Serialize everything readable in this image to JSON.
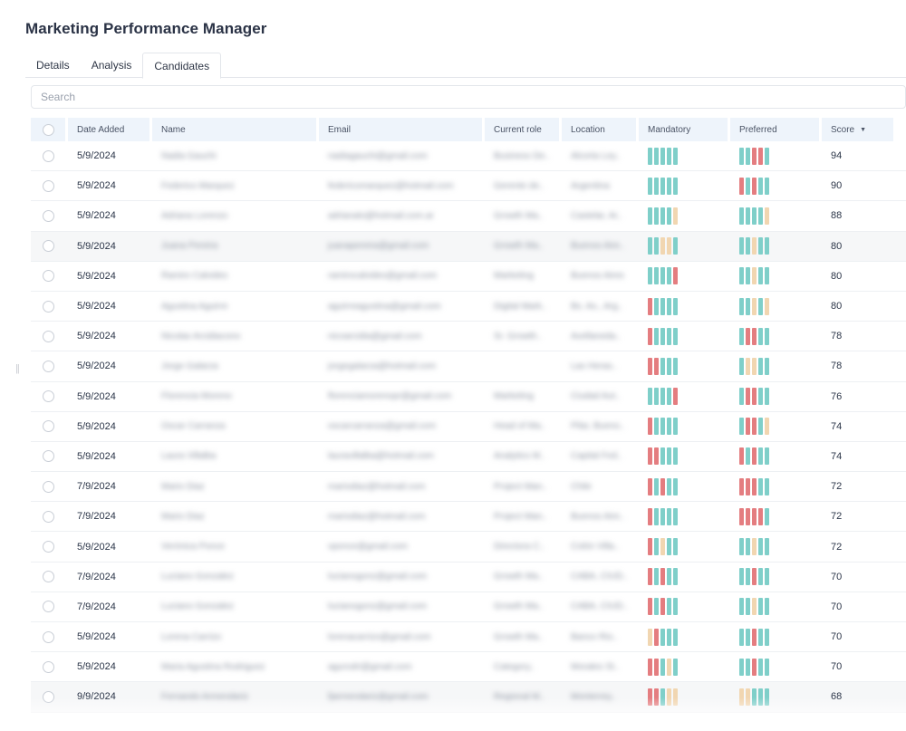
{
  "page": {
    "title": "Marketing Performance Manager"
  },
  "tabs": [
    {
      "label": "Details",
      "active": false
    },
    {
      "label": "Analysis",
      "active": false
    },
    {
      "label": "Candidates",
      "active": true
    }
  ],
  "search": {
    "placeholder": "Search",
    "value": ""
  },
  "colors": {
    "green": "#7fcfc9",
    "red": "#e47d80",
    "beige": "#f1d6b1",
    "header_bg": "#eef4fb"
  },
  "table": {
    "columns": [
      "",
      "Date Added",
      "Name",
      "Email",
      "Current role",
      "Location",
      "Mandatory",
      "Preferred",
      "Score"
    ],
    "sort": {
      "column": "Score",
      "direction": "desc"
    },
    "rows": [
      {
        "date": "5/9/2024",
        "name": "Nadia Gauchi",
        "email": "nadiagauchi@gmail.com",
        "role": "Business De..",
        "location": "Alcorta Ley..",
        "mandatory": "ggggg",
        "preferred": "ggrrg",
        "score": "94",
        "highlight": false
      },
      {
        "date": "5/9/2024",
        "name": "Federico Marquez",
        "email": "federicomarquez@hotmail.com",
        "role": "Gerente de..",
        "location": "Argentina",
        "mandatory": "ggggg",
        "preferred": "rgrgg",
        "score": "90",
        "highlight": false
      },
      {
        "date": "5/9/2024",
        "name": "Adriana Lorenzo",
        "email": "adrianalo@hotmail.com.ar",
        "role": "Growth Ma..",
        "location": "Castelar, Ar..",
        "mandatory": "ggggb",
        "preferred": "ggggb",
        "score": "88",
        "highlight": false
      },
      {
        "date": "5/9/2024",
        "name": "Juana Pereira",
        "email": "juanapereira@gmail.com",
        "role": "Growth Ma..",
        "location": "Buenos Aire..",
        "mandatory": "ggbbg",
        "preferred": "ggbgg",
        "score": "80",
        "highlight": true
      },
      {
        "date": "5/9/2024",
        "name": "Ramiro Calvides",
        "email": "ramirocalvides@gmail.com",
        "role": "Marketing",
        "location": "Buenos Aires",
        "mandatory": "ggggr",
        "preferred": "ggbgg",
        "score": "80",
        "highlight": false
      },
      {
        "date": "5/9/2024",
        "name": "Agustina Aguirre",
        "email": "aguirreagustina@gmail.com",
        "role": "Digital Mark..",
        "location": "Bs. As., Arg..",
        "mandatory": "rgggg",
        "preferred": "ggbgb",
        "score": "80",
        "highlight": false
      },
      {
        "date": "5/9/2024",
        "name": "Nicolas Arcidiacono",
        "email": "nicoarcidia@gmail.com",
        "role": "Sr. Growth..",
        "location": "Avellaneda..",
        "mandatory": "rgggg",
        "preferred": "grrgg",
        "score": "78",
        "highlight": false
      },
      {
        "date": "5/9/2024",
        "name": "Jorge Galarza",
        "email": "jorgegalarza@hotmail.com",
        "role": "",
        "location": "Las Heras..",
        "mandatory": "rrggg",
        "preferred": "gbbgg",
        "score": "78",
        "highlight": false
      },
      {
        "date": "5/9/2024",
        "name": "Florencia Moreno",
        "email": "florenciamorenopr@gmail.com",
        "role": "Marketing",
        "location": "Ciudad Aut..",
        "mandatory": "ggggr",
        "preferred": "grrgg",
        "score": "76",
        "highlight": false
      },
      {
        "date": "5/9/2024",
        "name": "Oscar Carranza",
        "email": "oscarcarranza@gmail.com",
        "role": "Head of Ma..",
        "location": "Pilar, Bueno..",
        "mandatory": "rgggg",
        "preferred": "grrgb",
        "score": "74",
        "highlight": false
      },
      {
        "date": "5/9/2024",
        "name": "Laura Villalba",
        "email": "lauravillalba@hotmail.com",
        "role": "Analytics M..",
        "location": "Capital Fed..",
        "mandatory": "rrggg",
        "preferred": "rgrgg",
        "score": "74",
        "highlight": false
      },
      {
        "date": "7/9/2024",
        "name": "Mario Diaz",
        "email": "mariodiaz@hotmail.com",
        "role": "Project Man..",
        "location": "Chile",
        "mandatory": "rgrgg",
        "preferred": "rrrgg",
        "score": "72",
        "highlight": false
      },
      {
        "date": "7/9/2024",
        "name": "Mario Diaz",
        "email": "mariodiaz@hotmail.com",
        "role": "Project Man..",
        "location": "Buenos Aire..",
        "mandatory": "rgggg",
        "preferred": "rrrrg",
        "score": "72",
        "highlight": false
      },
      {
        "date": "5/9/2024",
        "name": "Verónica Ponce",
        "email": "vponce@gmail.com",
        "role": "Directora C..",
        "location": "Colón Villa..",
        "mandatory": "rgbgg",
        "preferred": "ggbgg",
        "score": "72",
        "highlight": false
      },
      {
        "date": "7/9/2024",
        "name": "Luciano Gonzalez",
        "email": "lucianogonz@gmail.com",
        "role": "Growth Ma..",
        "location": "CABA, CIUD..",
        "mandatory": "rgrgg",
        "preferred": "ggrgg",
        "score": "70",
        "highlight": false
      },
      {
        "date": "7/9/2024",
        "name": "Luciano Gonzalez",
        "email": "lucianogonz@gmail.com",
        "role": "Growth Ma..",
        "location": "CABA, CIUD..",
        "mandatory": "rgrgg",
        "preferred": "ggbgg",
        "score": "70",
        "highlight": false
      },
      {
        "date": "5/9/2024",
        "name": "Lorena Carrizo",
        "email": "lorenacarrizo@gmail.com",
        "role": "Growth Ma..",
        "location": "Banco Rio..",
        "mandatory": "brggg",
        "preferred": "ggrgg",
        "score": "70",
        "highlight": false
      },
      {
        "date": "5/9/2024",
        "name": "Maria Agustina Rodriguez",
        "email": "agurodri@gmail.com",
        "role": "Category..",
        "location": "Morales St..",
        "mandatory": "rrgbg",
        "preferred": "ggrgg",
        "score": "70",
        "highlight": false
      },
      {
        "date": "9/9/2024",
        "name": "Fernando Armendariz",
        "email": "fjarmendariz@gmail.com",
        "role": "Regional M..",
        "location": "Monterrey..",
        "mandatory": "rrgbb",
        "preferred": "bbggg",
        "score": "68",
        "highlight": true
      }
    ]
  }
}
